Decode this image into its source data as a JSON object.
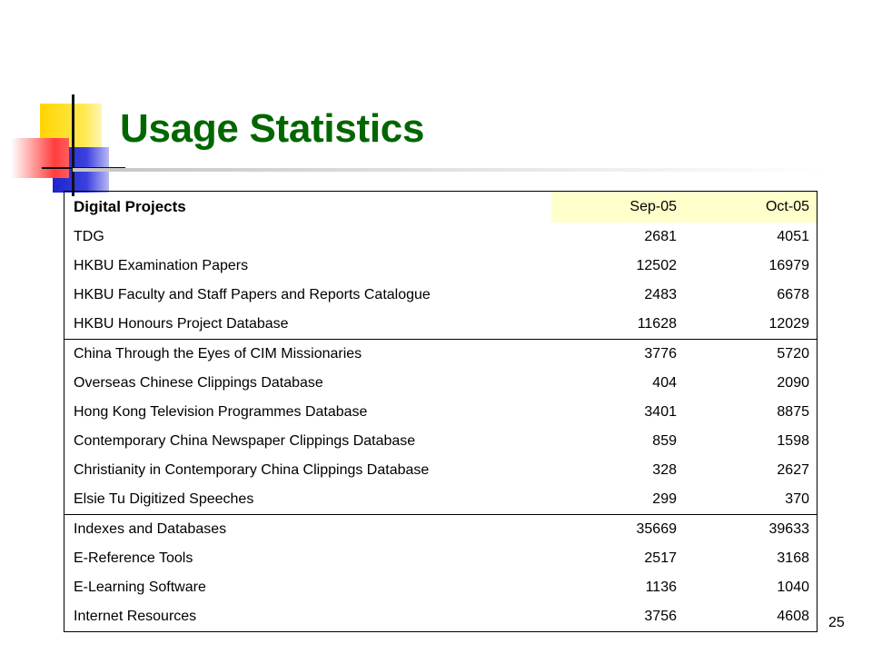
{
  "slide": {
    "title": "Usage Statistics",
    "page_number": "25",
    "colors": {
      "title": "#006600",
      "header_highlight": "#ffffcc",
      "deco_yellow": "#ffd400",
      "deco_blue": "#1f24c8",
      "deco_red": "#ff3d3d"
    }
  },
  "table": {
    "header": {
      "name": "Digital Projects",
      "col1": "Sep-05",
      "col2": "Oct-05"
    },
    "groups": [
      [
        {
          "name": "TDG",
          "sep": "2681",
          "oct": "4051"
        },
        {
          "name": "HKBU Examination Papers",
          "sep": "12502",
          "oct": "16979"
        },
        {
          "name": "HKBU Faculty and Staff Papers and Reports Catalogue",
          "sep": "2483",
          "oct": "6678"
        },
        {
          "name": "HKBU Honours Project Database",
          "sep": "11628",
          "oct": "12029"
        }
      ],
      [
        {
          "name": "China Through the Eyes of CIM Missionaries",
          "sep": "3776",
          "oct": "5720"
        },
        {
          "name": "Overseas Chinese Clippings Database",
          "sep": "404",
          "oct": "2090"
        },
        {
          "name": "Hong Kong Television Programmes Database",
          "sep": "3401",
          "oct": "8875"
        },
        {
          "name": "Contemporary China Newspaper Clippings Database",
          "sep": "859",
          "oct": "1598"
        },
        {
          "name": "Christianity in Contemporary China Clippings Database",
          "sep": "328",
          "oct": "2627"
        },
        {
          "name": "Elsie Tu Digitized Speeches",
          "sep": "299",
          "oct": "370"
        }
      ],
      [
        {
          "name": "Indexes and Databases",
          "sep": "35669",
          "oct": "39633"
        },
        {
          "name": "E-Reference Tools",
          "sep": "2517",
          "oct": "3168"
        },
        {
          "name": "E-Learning Software",
          "sep": "1136",
          "oct": "1040"
        },
        {
          "name": "Internet Resources",
          "sep": "3756",
          "oct": "4608"
        }
      ]
    ]
  }
}
